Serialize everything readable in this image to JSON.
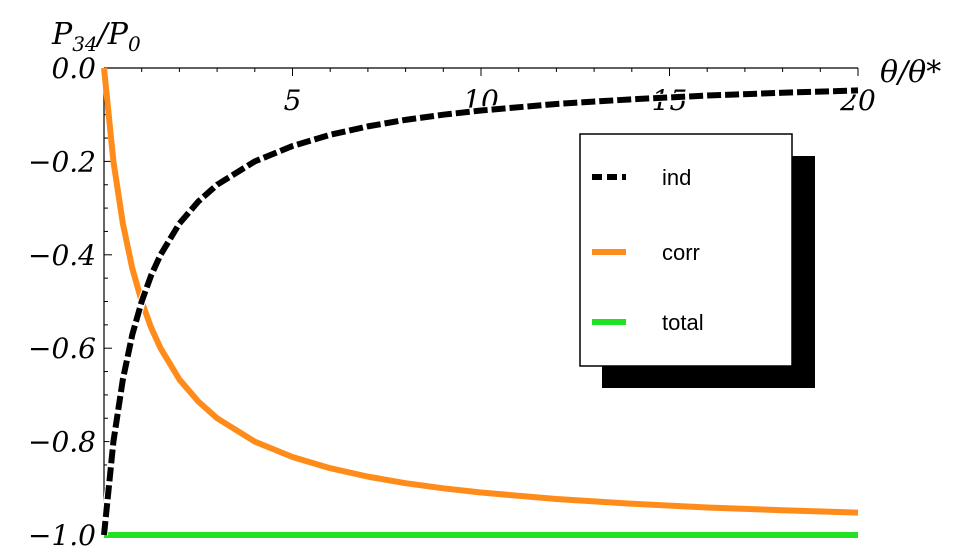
{
  "chart_data": {
    "type": "line",
    "title": "",
    "xlabel": "θ/θ*",
    "ylabel_main": "P",
    "ylabel_sub": "34",
    "ylabel_sep": "/P",
    "ylabel_sub2": "0",
    "xlim": [
      0,
      20
    ],
    "ylim": [
      -1.0,
      0.0
    ],
    "x_ticks": [
      5,
      10,
      15,
      20
    ],
    "x_tick_labels": [
      "5",
      "10",
      "15",
      "20"
    ],
    "y_ticks": [
      0.0,
      -0.2,
      -0.4,
      -0.6,
      -0.8,
      -1.0
    ],
    "y_tick_labels": [
      "0.0",
      "−0.2",
      "−0.4",
      "−0.6",
      "−0.8",
      "−1.0"
    ],
    "grid": false,
    "legend_placement": "upper-right",
    "series": [
      {
        "name": "ind",
        "color": "#000000",
        "dash": "dashed",
        "x": [
          0,
          0.25,
          0.5,
          0.75,
          1,
          1.25,
          1.5,
          2,
          2.5,
          3,
          4,
          5,
          6,
          7,
          8,
          9,
          10,
          12,
          14,
          16,
          18,
          20
        ],
        "values": [
          -1.0,
          -0.8,
          -0.667,
          -0.571,
          -0.5,
          -0.444,
          -0.4,
          -0.333,
          -0.286,
          -0.25,
          -0.2,
          -0.167,
          -0.143,
          -0.125,
          -0.111,
          -0.1,
          -0.091,
          -0.077,
          -0.067,
          -0.059,
          -0.053,
          -0.048
        ]
      },
      {
        "name": "corr",
        "color": "#ff8c1a",
        "dash": "solid",
        "x": [
          0,
          0.25,
          0.5,
          0.75,
          1,
          1.25,
          1.5,
          2,
          2.5,
          3,
          4,
          5,
          6,
          7,
          8,
          9,
          10,
          12,
          14,
          16,
          18,
          20
        ],
        "values": [
          0.0,
          -0.2,
          -0.333,
          -0.429,
          -0.5,
          -0.556,
          -0.6,
          -0.667,
          -0.714,
          -0.75,
          -0.8,
          -0.833,
          -0.857,
          -0.875,
          -0.889,
          -0.9,
          -0.909,
          -0.923,
          -0.933,
          -0.941,
          -0.947,
          -0.952
        ]
      },
      {
        "name": "total",
        "color": "#22e022",
        "dash": "solid",
        "x": [
          0,
          20
        ],
        "values": [
          -1.0,
          -1.0
        ]
      }
    ]
  }
}
